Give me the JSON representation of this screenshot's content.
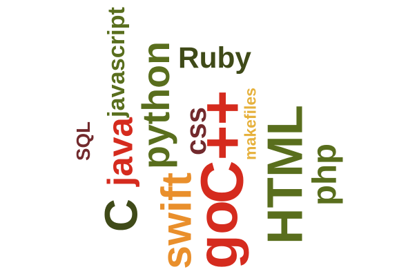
{
  "colors": {
    "dark_olive": "#3f4a18",
    "olive_green": "#596e1d",
    "orange": "#e98f2c",
    "red": "#d52b1e",
    "maroon": "#722a2d",
    "gold": "#e6b13c"
  },
  "words": [
    {
      "id": "javascript",
      "text": "javascript",
      "color": "olive_green"
    },
    {
      "id": "ruby",
      "text": "Ruby",
      "color": "dark_olive"
    },
    {
      "id": "python",
      "text": "python",
      "color": "olive_green"
    },
    {
      "id": "java",
      "text": "java",
      "color": "red"
    },
    {
      "id": "sql",
      "text": "SQL",
      "color": "maroon"
    },
    {
      "id": "css",
      "text": "css",
      "color": "maroon"
    },
    {
      "id": "cpp",
      "text": "C++",
      "color": "red"
    },
    {
      "id": "makefiles",
      "text": "makefiles",
      "color": "gold"
    },
    {
      "id": "html",
      "text": "HTML",
      "color": "olive_green"
    },
    {
      "id": "php",
      "text": "php",
      "color": "olive_green"
    },
    {
      "id": "c",
      "text": "C",
      "color": "dark_olive"
    },
    {
      "id": "swift",
      "text": "swift",
      "color": "orange"
    },
    {
      "id": "go",
      "text": "go",
      "color": "red"
    }
  ]
}
